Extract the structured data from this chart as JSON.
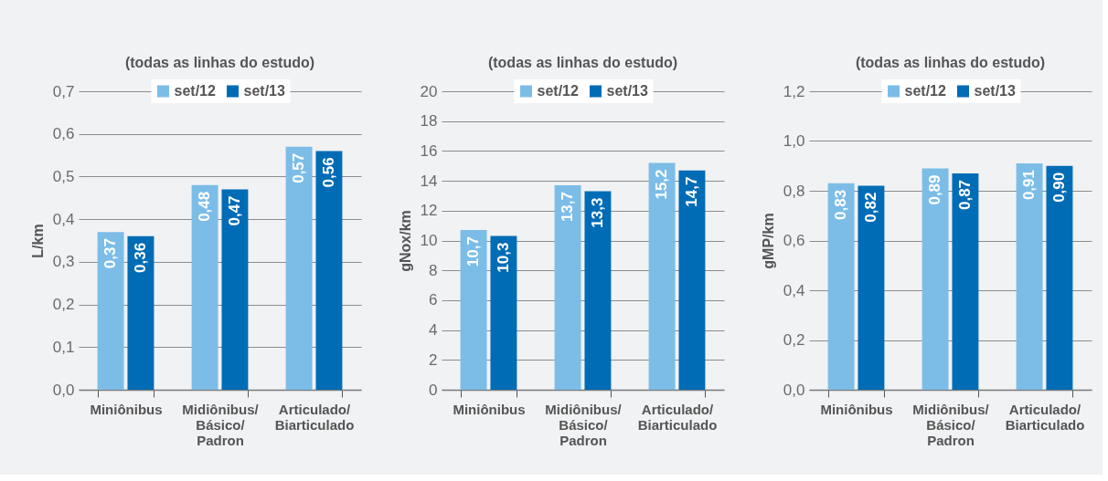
{
  "chart_data": [
    {
      "type": "bar",
      "title": "(todas as linhas do estudo)",
      "ylabel": "L/km",
      "categories": [
        "Miniônibus",
        "Midiônibus/Básico/Padron",
        "Articulado/Biarticulado"
      ],
      "series": [
        {
          "name": "set/12",
          "color": "#7cbde8",
          "values": [
            0.37,
            0.48,
            0.57
          ],
          "value_labels": [
            "0,37",
            "0,48",
            "0,57"
          ]
        },
        {
          "name": "set/13",
          "color": "#006cb6",
          "values": [
            0.36,
            0.47,
            0.56
          ],
          "value_labels": [
            "0,36",
            "0,47",
            "0,56"
          ]
        }
      ],
      "ylim": [
        0,
        0.7
      ],
      "yticks": [
        {
          "value": 0,
          "label": "0,0"
        },
        {
          "value": 0.1,
          "label": "0,1"
        },
        {
          "value": 0.2,
          "label": "0,2"
        },
        {
          "value": 0.3,
          "label": "0,3"
        },
        {
          "value": 0.4,
          "label": "0,4"
        },
        {
          "value": 0.5,
          "label": "0,5"
        },
        {
          "value": 0.6,
          "label": "0,6"
        },
        {
          "value": 0.7,
          "label": "0,7"
        }
      ],
      "grid": "y",
      "legend": "top"
    },
    {
      "type": "bar",
      "title": "(todas as linhas do estudo)",
      "ylabel": "gNox/km",
      "categories": [
        "Miniônibus",
        "Midiônibus/Básico/Padron",
        "Articulado/Biarticulado"
      ],
      "series": [
        {
          "name": "set/12",
          "color": "#7cbde8",
          "values": [
            10.7,
            13.7,
            15.2
          ],
          "value_labels": [
            "10,7",
            "13,7",
            "15,2"
          ]
        },
        {
          "name": "set/13",
          "color": "#006cb6",
          "values": [
            10.3,
            13.3,
            14.7
          ],
          "value_labels": [
            "10,3",
            "13,3",
            "14,7"
          ]
        }
      ],
      "ylim": [
        0,
        20
      ],
      "yticks": [
        0,
        2,
        4,
        6,
        8,
        10,
        12,
        14,
        16,
        18,
        20
      ],
      "grid": "y",
      "legend": "top"
    },
    {
      "type": "bar",
      "title": "(todas as linhas do estudo)",
      "ylabel": "gMP/km",
      "categories": [
        "Miniônibus",
        "Midiônibus/Básico/Padron",
        "Articulado/Biarticulado"
      ],
      "series": [
        {
          "name": "set/12",
          "color": "#7cbde8",
          "values": [
            0.83,
            0.89,
            0.91
          ],
          "value_labels": [
            "0,83",
            "0,89",
            "0,91"
          ]
        },
        {
          "name": "set/13",
          "color": "#006cb6",
          "values": [
            0.82,
            0.87,
            0.9
          ],
          "value_labels": [
            "0,82",
            "0,87",
            "0,90"
          ]
        }
      ],
      "ylim": [
        0,
        1.2
      ],
      "yticks": [
        {
          "value": 0,
          "label": "0,0"
        },
        {
          "value": 0.2,
          "label": "0,2"
        },
        {
          "value": 0.4,
          "label": "0,4"
        },
        {
          "value": 0.6,
          "label": "0,6"
        },
        {
          "value": 0.8,
          "label": "0,8"
        },
        {
          "value": 1.0,
          "label": "1,0"
        },
        {
          "value": 1.2,
          "label": "1,2"
        }
      ],
      "grid": "y",
      "legend": "top"
    }
  ]
}
